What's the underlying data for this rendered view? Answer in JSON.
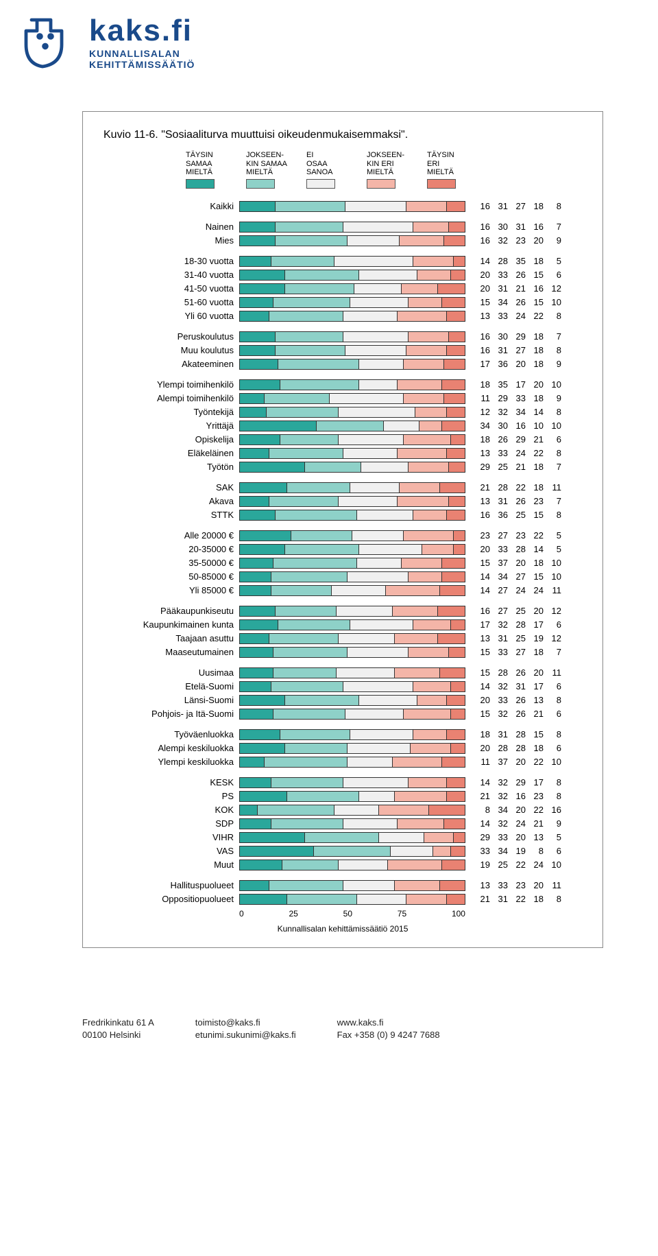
{
  "brand": {
    "name": "kaks.fi",
    "sub1": "KUNNALLISALAN",
    "sub2": "KEHITTÄMISSÄÄTIÖ"
  },
  "chart": {
    "type": "stacked-bar-horizontal",
    "title_prefix": "Kuvio 11-6.",
    "title": "\"Sosiaaliturva muuttuisi oikeudenmukaisemmaksi\".",
    "legend": [
      {
        "label_lines": [
          "TÄYSIN",
          "SAMAA",
          "MIELTÄ"
        ],
        "color": "#2aa79b"
      },
      {
        "label_lines": [
          "JOKSEEN-",
          "KIN SAMAA",
          "MIELTÄ"
        ],
        "color": "#8ed1c8"
      },
      {
        "label_lines": [
          "EI",
          "OSAA",
          "SANOA"
        ],
        "color": "#f0f0f0"
      },
      {
        "label_lines": [
          "JOKSEEN-",
          "KIN ERI",
          "MIELTÄ"
        ],
        "color": "#f4b5a8"
      },
      {
        "label_lines": [
          "TÄYSIN",
          "ERI",
          "MIELTÄ"
        ],
        "color": "#e98272"
      }
    ],
    "bar_border_color": "#333333",
    "background_color": "#ffffff",
    "label_fontsize": 13,
    "value_fontsize": 13,
    "xlim": [
      0,
      100
    ],
    "xticks": [
      0,
      25,
      50,
      75,
      100
    ],
    "groups": [
      {
        "rows": [
          {
            "label": "Kaikki",
            "v": [
              16,
              31,
              27,
              18,
              8
            ]
          }
        ]
      },
      {
        "rows": [
          {
            "label": "Nainen",
            "v": [
              16,
              30,
              31,
              16,
              7
            ]
          },
          {
            "label": "Mies",
            "v": [
              16,
              32,
              23,
              20,
              9
            ]
          }
        ]
      },
      {
        "rows": [
          {
            "label": "18-30 vuotta",
            "v": [
              14,
              28,
              35,
              18,
              5
            ]
          },
          {
            "label": "31-40 vuotta",
            "v": [
              20,
              33,
              26,
              15,
              6
            ]
          },
          {
            "label": "41-50 vuotta",
            "v": [
              20,
              31,
              21,
              16,
              12
            ]
          },
          {
            "label": "51-60 vuotta",
            "v": [
              15,
              34,
              26,
              15,
              10
            ]
          },
          {
            "label": "Yli 60 vuotta",
            "v": [
              13,
              33,
              24,
              22,
              8
            ]
          }
        ]
      },
      {
        "rows": [
          {
            "label": "Peruskoulutus",
            "v": [
              16,
              30,
              29,
              18,
              7
            ]
          },
          {
            "label": "Muu koulutus",
            "v": [
              16,
              31,
              27,
              18,
              8
            ]
          },
          {
            "label": "Akateeminen",
            "v": [
              17,
              36,
              20,
              18,
              9
            ]
          }
        ]
      },
      {
        "rows": [
          {
            "label": "Ylempi toimihenkilö",
            "v": [
              18,
              35,
              17,
              20,
              10
            ]
          },
          {
            "label": "Alempi toimihenkilö",
            "v": [
              11,
              29,
              33,
              18,
              9
            ]
          },
          {
            "label": "Työntekijä",
            "v": [
              12,
              32,
              34,
              14,
              8
            ]
          },
          {
            "label": "Yrittäjä",
            "v": [
              34,
              30,
              16,
              10,
              10
            ]
          },
          {
            "label": "Opiskelija",
            "v": [
              18,
              26,
              29,
              21,
              6
            ]
          },
          {
            "label": "Eläkeläinen",
            "v": [
              13,
              33,
              24,
              22,
              8
            ]
          },
          {
            "label": "Työtön",
            "v": [
              29,
              25,
              21,
              18,
              7
            ]
          }
        ]
      },
      {
        "rows": [
          {
            "label": "SAK",
            "v": [
              21,
              28,
              22,
              18,
              11
            ]
          },
          {
            "label": "Akava",
            "v": [
              13,
              31,
              26,
              23,
              7
            ]
          },
          {
            "label": "STTK",
            "v": [
              16,
              36,
              25,
              15,
              8
            ]
          }
        ]
      },
      {
        "rows": [
          {
            "label": "Alle 20000 €",
            "v": [
              23,
              27,
              23,
              22,
              5
            ]
          },
          {
            "label": "20-35000 €",
            "v": [
              20,
              33,
              28,
              14,
              5
            ]
          },
          {
            "label": "35-50000 €",
            "v": [
              15,
              37,
              20,
              18,
              10
            ]
          },
          {
            "label": "50-85000 €",
            "v": [
              14,
              34,
              27,
              15,
              10
            ]
          },
          {
            "label": "Yli 85000 €",
            "v": [
              14,
              27,
              24,
              24,
              11
            ]
          }
        ]
      },
      {
        "rows": [
          {
            "label": "Pääkaupunkiseutu",
            "v": [
              16,
              27,
              25,
              20,
              12
            ]
          },
          {
            "label": "Kaupunkimainen kunta",
            "v": [
              17,
              32,
              28,
              17,
              6
            ]
          },
          {
            "label": "Taajaan asuttu",
            "v": [
              13,
              31,
              25,
              19,
              12
            ]
          },
          {
            "label": "Maaseutumainen",
            "v": [
              15,
              33,
              27,
              18,
              7
            ]
          }
        ]
      },
      {
        "rows": [
          {
            "label": "Uusimaa",
            "v": [
              15,
              28,
              26,
              20,
              11
            ]
          },
          {
            "label": "Etelä-Suomi",
            "v": [
              14,
              32,
              31,
              17,
              6
            ]
          },
          {
            "label": "Länsi-Suomi",
            "v": [
              20,
              33,
              26,
              13,
              8
            ]
          },
          {
            "label": "Pohjois- ja Itä-Suomi",
            "v": [
              15,
              32,
              26,
              21,
              6
            ]
          }
        ]
      },
      {
        "rows": [
          {
            "label": "Työväenluokka",
            "v": [
              18,
              31,
              28,
              15,
              8
            ]
          },
          {
            "label": "Alempi keskiluokka",
            "v": [
              20,
              28,
              28,
              18,
              6
            ]
          },
          {
            "label": "Ylempi keskiluokka",
            "v": [
              11,
              37,
              20,
              22,
              10
            ]
          }
        ]
      },
      {
        "rows": [
          {
            "label": "KESK",
            "v": [
              14,
              32,
              29,
              17,
              8
            ]
          },
          {
            "label": "PS",
            "v": [
              21,
              32,
              16,
              23,
              8
            ]
          },
          {
            "label": "KOK",
            "v": [
              8,
              34,
              20,
              22,
              16
            ]
          },
          {
            "label": "SDP",
            "v": [
              14,
              32,
              24,
              21,
              9
            ]
          },
          {
            "label": "VIHR",
            "v": [
              29,
              33,
              20,
              13,
              5
            ]
          },
          {
            "label": "VAS",
            "v": [
              33,
              34,
              19,
              8,
              6
            ]
          },
          {
            "label": "Muut",
            "v": [
              19,
              25,
              22,
              24,
              10
            ]
          }
        ]
      },
      {
        "rows": [
          {
            "label": "Hallituspuolueet",
            "v": [
              13,
              33,
              23,
              20,
              11
            ]
          },
          {
            "label": "Oppositiopuolueet",
            "v": [
              21,
              31,
              22,
              18,
              8
            ]
          }
        ]
      }
    ],
    "caption": "Kunnallisalan kehittämissäätiö 2015"
  },
  "footer": {
    "col1_l1": "Fredrikinkatu 61 A",
    "col1_l2": "00100 Helsinki",
    "col2_l1": "toimisto@kaks.fi",
    "col2_l2": "etunimi.sukunimi@kaks.fi",
    "col3_l1": "www.kaks.fi",
    "col3_l2": "Fax +358 (0) 9 4247 7688"
  }
}
